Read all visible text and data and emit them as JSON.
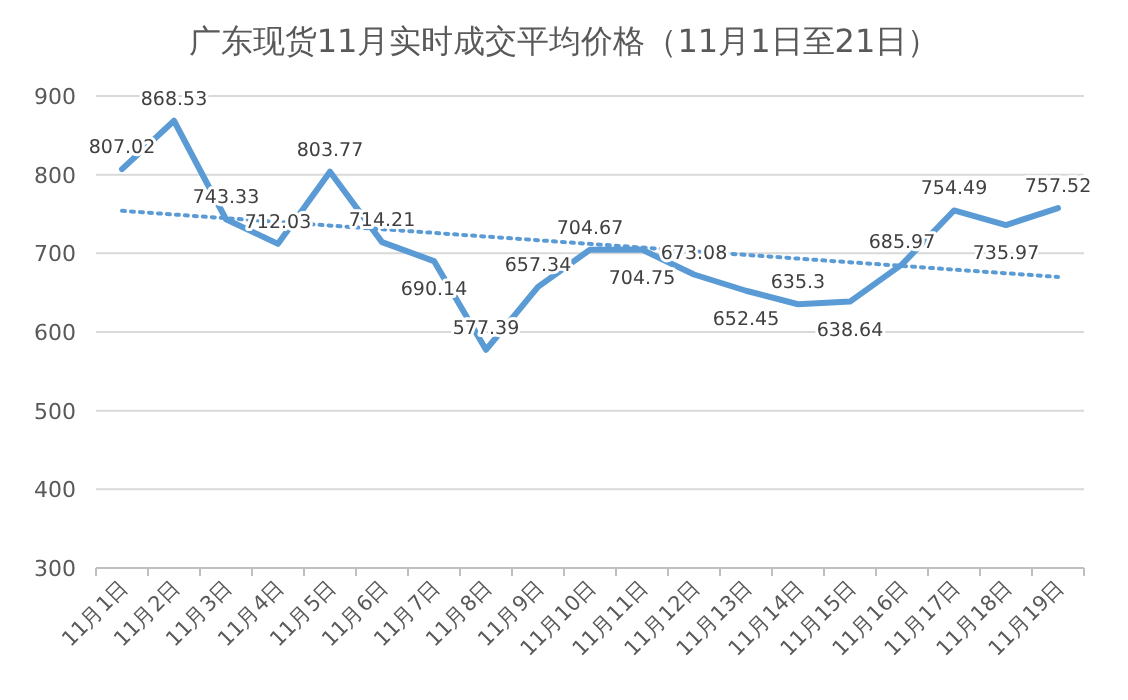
{
  "chart_data": {
    "type": "line",
    "title": "广东现货11月实时成交平均价格（11月1日至21日）",
    "categories": [
      "11月1日",
      "11月2日",
      "11月3日",
      "11月4日",
      "11月5日",
      "11月6日",
      "11月7日",
      "11月8日",
      "11月9日",
      "11月10日",
      "11月11日",
      "11月12日",
      "11月13日",
      "11月14日",
      "11月15日",
      "11月16日",
      "11月17日",
      "11月18日",
      "11月19日"
    ],
    "series": [
      {
        "color": "#5b9bd5",
        "values": [
          807.02,
          868.53,
          743.33,
          712.03,
          803.77,
          714.21,
          690.14,
          577.39,
          657.34,
          704.67,
          704.75,
          673.08,
          652.45,
          635.3,
          638.64,
          685.97,
          754.49,
          735.97,
          757.52
        ],
        "data_labels": true,
        "line_style": "solid"
      },
      {
        "type": "line",
        "color": "#5b9bd5",
        "x": [
          "11月1日",
          "11月19日"
        ],
        "values": [
          754,
          670
        ],
        "line_style": "dotted"
      }
    ],
    "ylim": [
      300,
      900
    ],
    "yticks": [
      300,
      400,
      500,
      600,
      700,
      800,
      900
    ],
    "grid": "y",
    "marker": "none"
  }
}
